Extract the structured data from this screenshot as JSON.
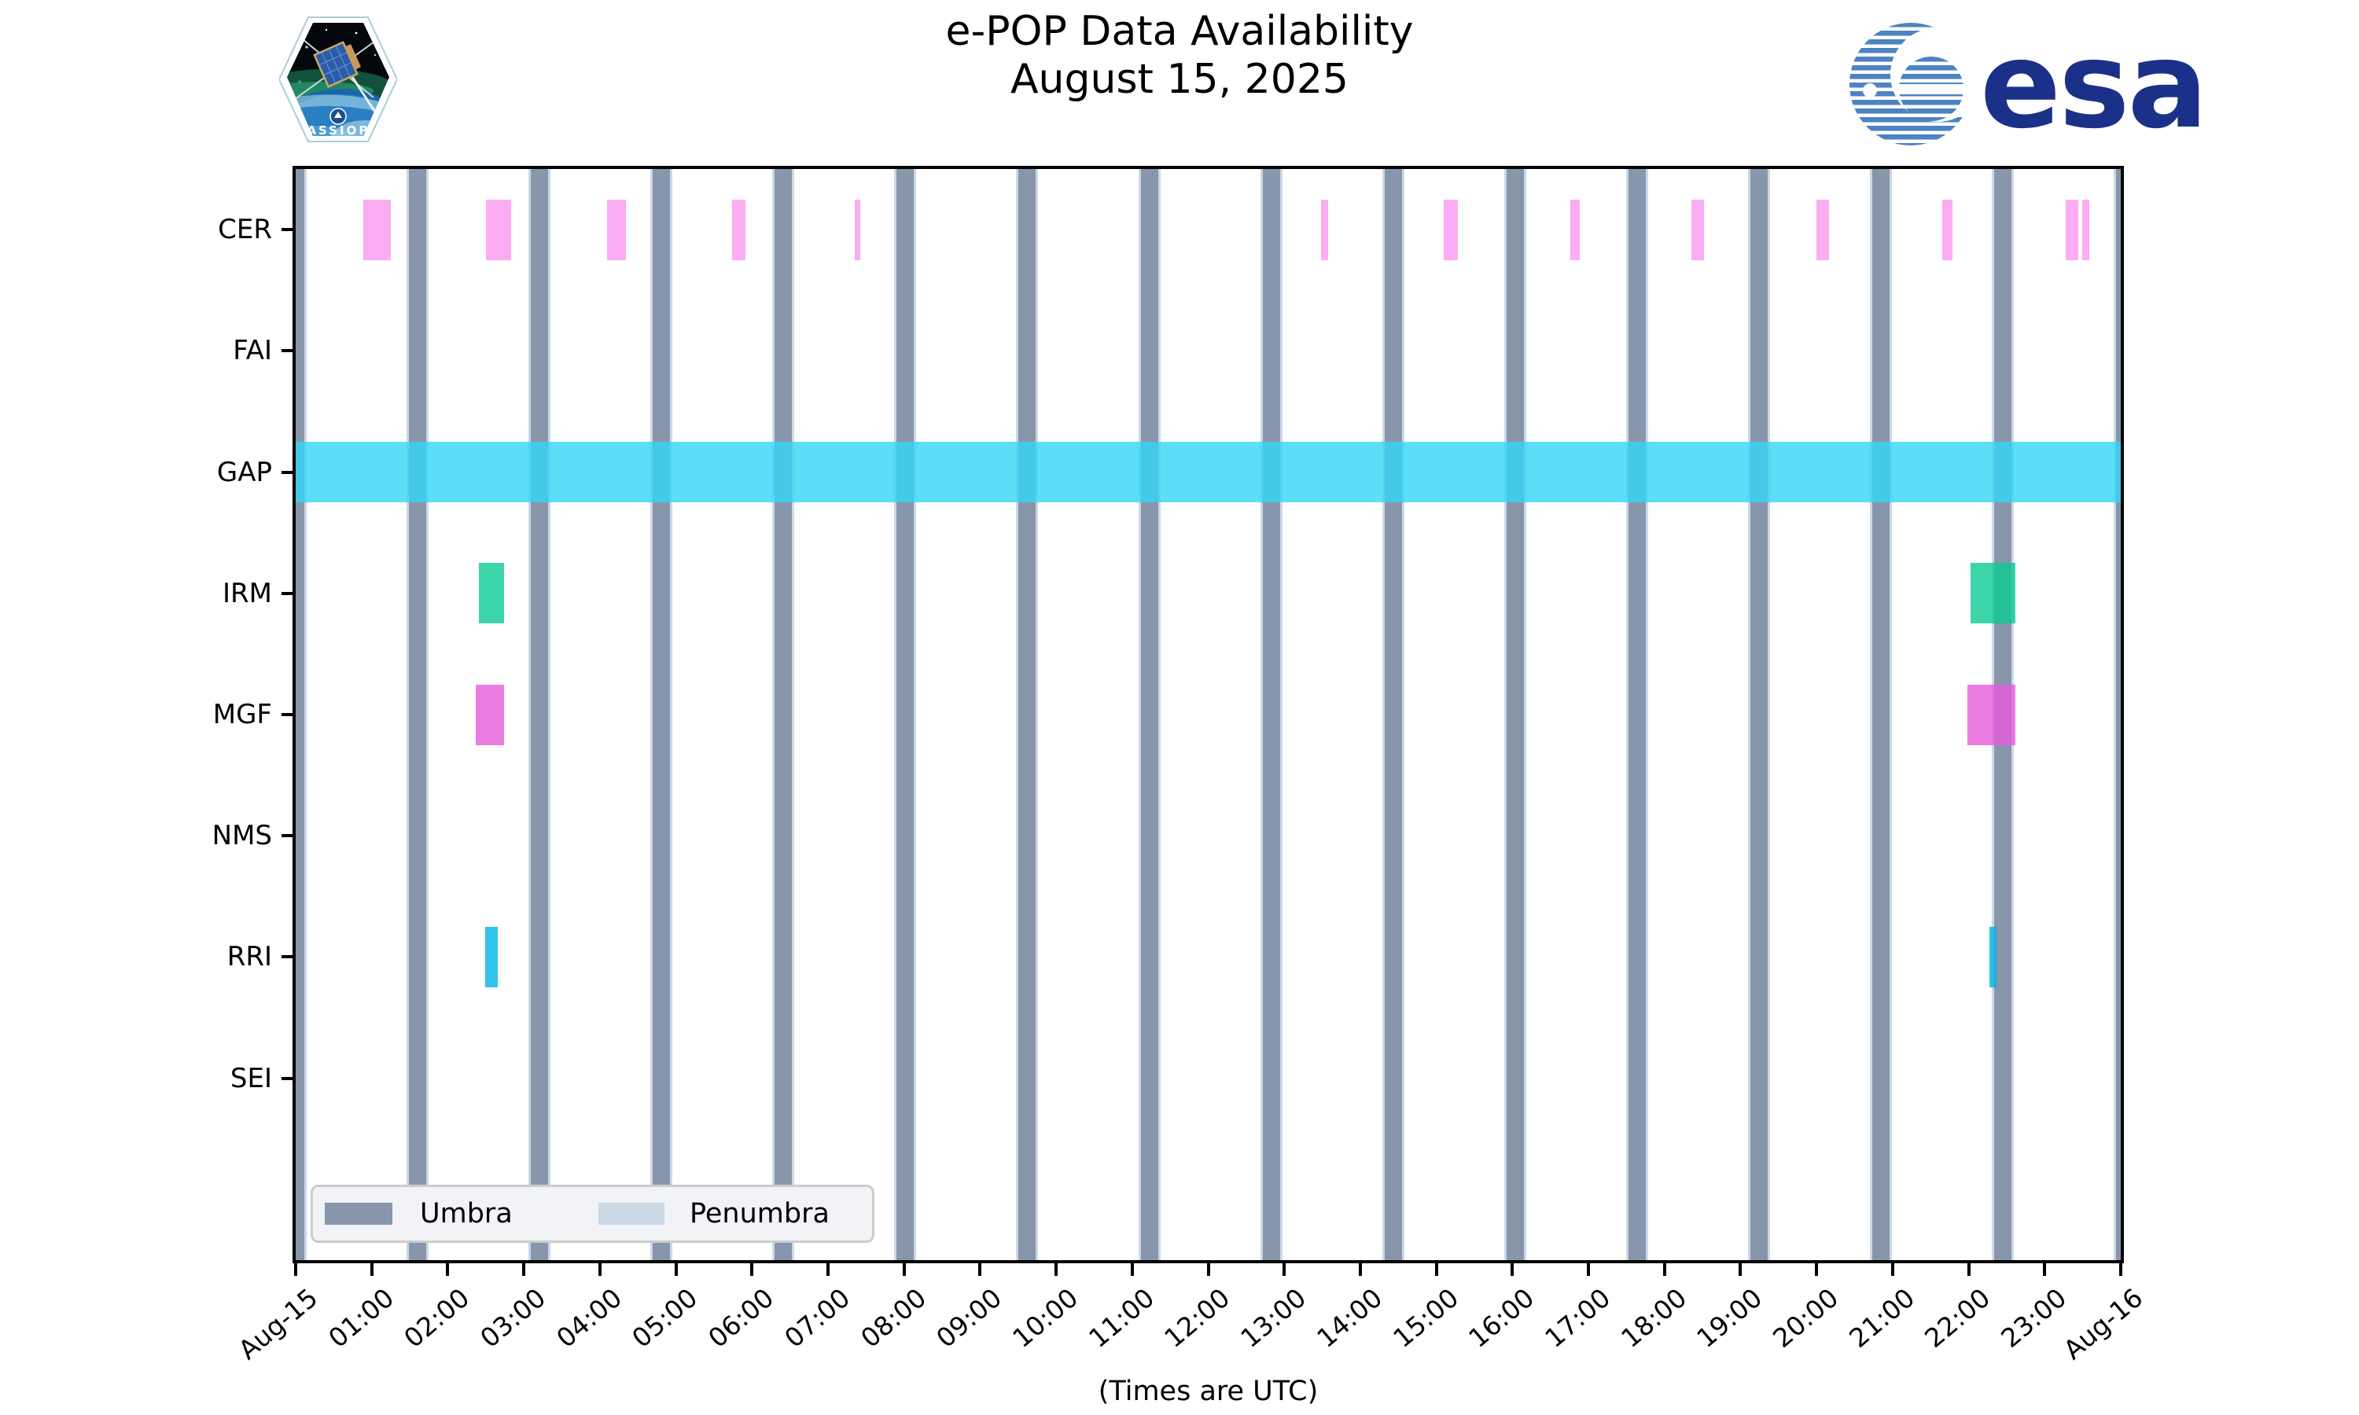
{
  "header": {
    "title_line1": "e-POP Data Availability",
    "title_line2": "August 15, 2025",
    "cassiope_patch_label": "CASSIOPE",
    "esa_logo_label": "esa"
  },
  "axis_caption": "(Times are UTC)",
  "legend": {
    "entries": [
      {
        "label": "Umbra",
        "color": "#8796AA"
      },
      {
        "label": "Penumbra",
        "color": "#CBD8E6"
      }
    ],
    "position": "lower-left"
  },
  "chart_data": {
    "type": "bar",
    "variant": "instrument-availability-timeline",
    "title": "e-POP Data Availability",
    "subtitle": "August 15, 2025",
    "xlabel": "(Times are UTC)",
    "grid": false,
    "x_axis": {
      "unit": "hours (UTC)",
      "range_h": [
        0,
        24
      ],
      "tick_interval_h": 1,
      "tick_labels": [
        "Aug-15",
        "01:00",
        "02:00",
        "03:00",
        "04:00",
        "05:00",
        "06:00",
        "07:00",
        "08:00",
        "09:00",
        "10:00",
        "11:00",
        "12:00",
        "13:00",
        "14:00",
        "15:00",
        "16:00",
        "17:00",
        "18:00",
        "19:00",
        "20:00",
        "21:00",
        "22:00",
        "23:00",
        "Aug-16"
      ],
      "tick_label_rotation_deg": -40
    },
    "rows": [
      "CER",
      "FAI",
      "GAP",
      "IRM",
      "MGF",
      "NMS",
      "RRI",
      "SEI"
    ],
    "series": [
      {
        "name": "CER",
        "color": "#FBACF2",
        "intervals_h": [
          [
            0.889,
            1.251
          ],
          [
            2.506,
            2.831
          ],
          [
            4.095,
            4.339
          ],
          [
            5.734,
            5.918
          ],
          [
            7.352,
            7.424
          ],
          [
            13.487,
            13.579
          ],
          [
            15.1,
            15.283
          ],
          [
            16.759,
            16.882
          ],
          [
            18.351,
            18.515
          ],
          [
            19.994,
            20.168
          ],
          [
            21.648,
            21.79
          ],
          [
            23.281,
            23.444
          ],
          [
            23.495,
            23.587
          ]
        ]
      },
      {
        "name": "FAI",
        "color": "#FBACF2",
        "intervals_h": []
      },
      {
        "name": "GAP",
        "color": "#5CDEF9",
        "intervals_h": [
          [
            0.0,
            24.0
          ]
        ]
      },
      {
        "name": "IRM",
        "color": "#3CD5A9",
        "intervals_h": [
          [
            2.409,
            2.74
          ],
          [
            22.026,
            22.616
          ]
        ]
      },
      {
        "name": "MGF",
        "color": "#EC7CE2",
        "intervals_h": [
          [
            2.368,
            2.74
          ],
          [
            21.981,
            22.619
          ]
        ]
      },
      {
        "name": "NMS",
        "color": "#EC7CE2",
        "intervals_h": []
      },
      {
        "name": "RRI",
        "color": "#2CC3E8",
        "intervals_h": [
          [
            2.492,
            2.657
          ],
          [
            22.274,
            22.371
          ]
        ]
      },
      {
        "name": "SEI",
        "color": "#2CC3E8",
        "intervals_h": []
      }
    ],
    "eclipse_shading": {
      "umbra": {
        "label": "Umbra",
        "color": "#8796AA",
        "centers_h": [
          0.0,
          1.604,
          3.208,
          4.812,
          6.416,
          8.019,
          9.623,
          11.227,
          12.831,
          14.435,
          16.039,
          17.643,
          19.247,
          20.85,
          22.454,
          24.058
        ],
        "half_width_h": 0.114
      },
      "penumbra": {
        "label": "Penumbra",
        "color": "#CBD8E6",
        "edge_width_h": 0.033
      }
    }
  }
}
